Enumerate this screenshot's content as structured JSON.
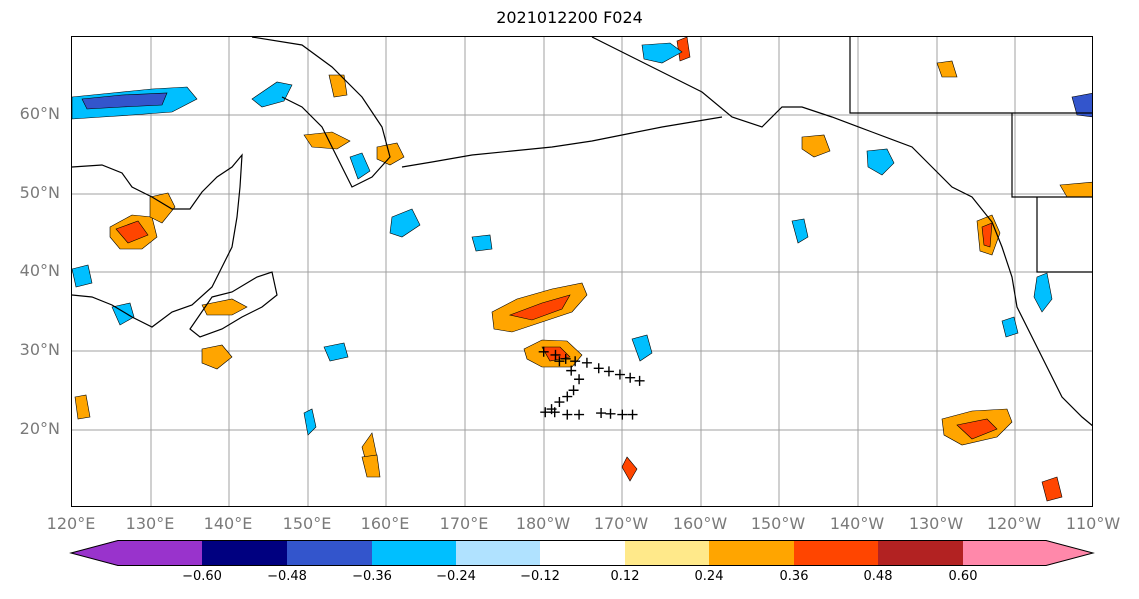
{
  "title": "2021012200 F024",
  "lat_labels": [
    "60°N",
    "50°N",
    "40°N",
    "30°N",
    "20°N"
  ],
  "lon_labels": [
    "120°E",
    "130°E",
    "140°E",
    "150°E",
    "160°E",
    "170°E",
    "180°W",
    "170°W",
    "160°W",
    "150°W",
    "140°W",
    "130°W",
    "120°W",
    "110°W"
  ],
  "colorbar": {
    "ticks": [
      "−0.60",
      "−0.48",
      "−0.36",
      "−0.24",
      "−0.12",
      "0.12",
      "0.24",
      "0.36",
      "0.48",
      "0.60"
    ],
    "colors": [
      "#9933cc",
      "#000080",
      "#3355cc",
      "#00bfff",
      "#b0e2ff",
      "#ffffff",
      "#ffe98a",
      "#ffa500",
      "#ff4500",
      "#b22222",
      "#ff88aa"
    ]
  },
  "extent": {
    "lon_min": 120,
    "lon_max": 250,
    "lat_min": 10,
    "lat_max": 70
  },
  "track_points": [
    [
      180.0,
      29.9
    ],
    [
      181.5,
      29.5
    ],
    [
      182.8,
      29.0
    ],
    [
      184.0,
      28.7
    ],
    [
      185.5,
      28.5
    ],
    [
      187.0,
      27.8
    ],
    [
      188.3,
      27.4
    ],
    [
      189.7,
      27.0
    ],
    [
      191.0,
      26.6
    ],
    [
      192.2,
      26.2
    ],
    [
      182.0,
      28.7
    ],
    [
      183.5,
      27.5
    ],
    [
      184.5,
      26.4
    ],
    [
      183.8,
      25.0
    ],
    [
      183.0,
      24.2
    ],
    [
      182.0,
      23.5
    ],
    [
      181.0,
      22.6
    ],
    [
      180.2,
      22.2
    ],
    [
      181.4,
      22.2
    ],
    [
      183.0,
      21.9
    ],
    [
      184.5,
      21.9
    ],
    [
      187.3,
      22.1
    ],
    [
      188.5,
      22.0
    ],
    [
      190.0,
      21.9
    ],
    [
      191.3,
      21.9
    ]
  ]
}
